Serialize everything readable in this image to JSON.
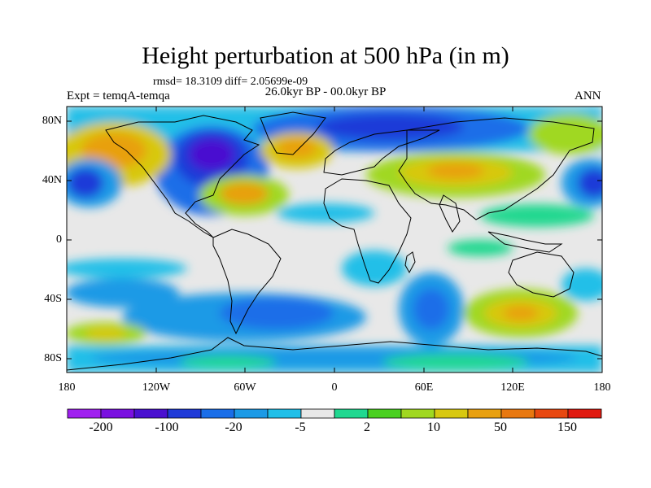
{
  "title": "Height perturbation at 500 hPa (in m)",
  "stats": "rmsd= 18.3109 diff= 2.05699e-09",
  "expt": "Expt = temqA-temqa",
  "period": "26.0kyr BP - 00.0kyr BP",
  "season": "ANN",
  "lat_labels": [
    "80N",
    "40N",
    "0",
    "40S",
    "80S"
  ],
  "lon_labels": [
    "180",
    "120W",
    "60W",
    "0",
    "60E",
    "120E",
    "180"
  ],
  "colorbar": {
    "colors": [
      "#a020f0",
      "#7a10e0",
      "#4a10d0",
      "#1f3ad8",
      "#1a6ee8",
      "#1c9ae6",
      "#20bfe8",
      "#e8e8e8",
      "#20d890",
      "#4ad020",
      "#a0d820",
      "#d8c810",
      "#e8a010",
      "#e87810",
      "#e84810",
      "#e01a10"
    ],
    "labels": [
      "-200",
      "-100",
      "-20",
      "-5",
      "2",
      "10",
      "50",
      "150"
    ]
  }
}
